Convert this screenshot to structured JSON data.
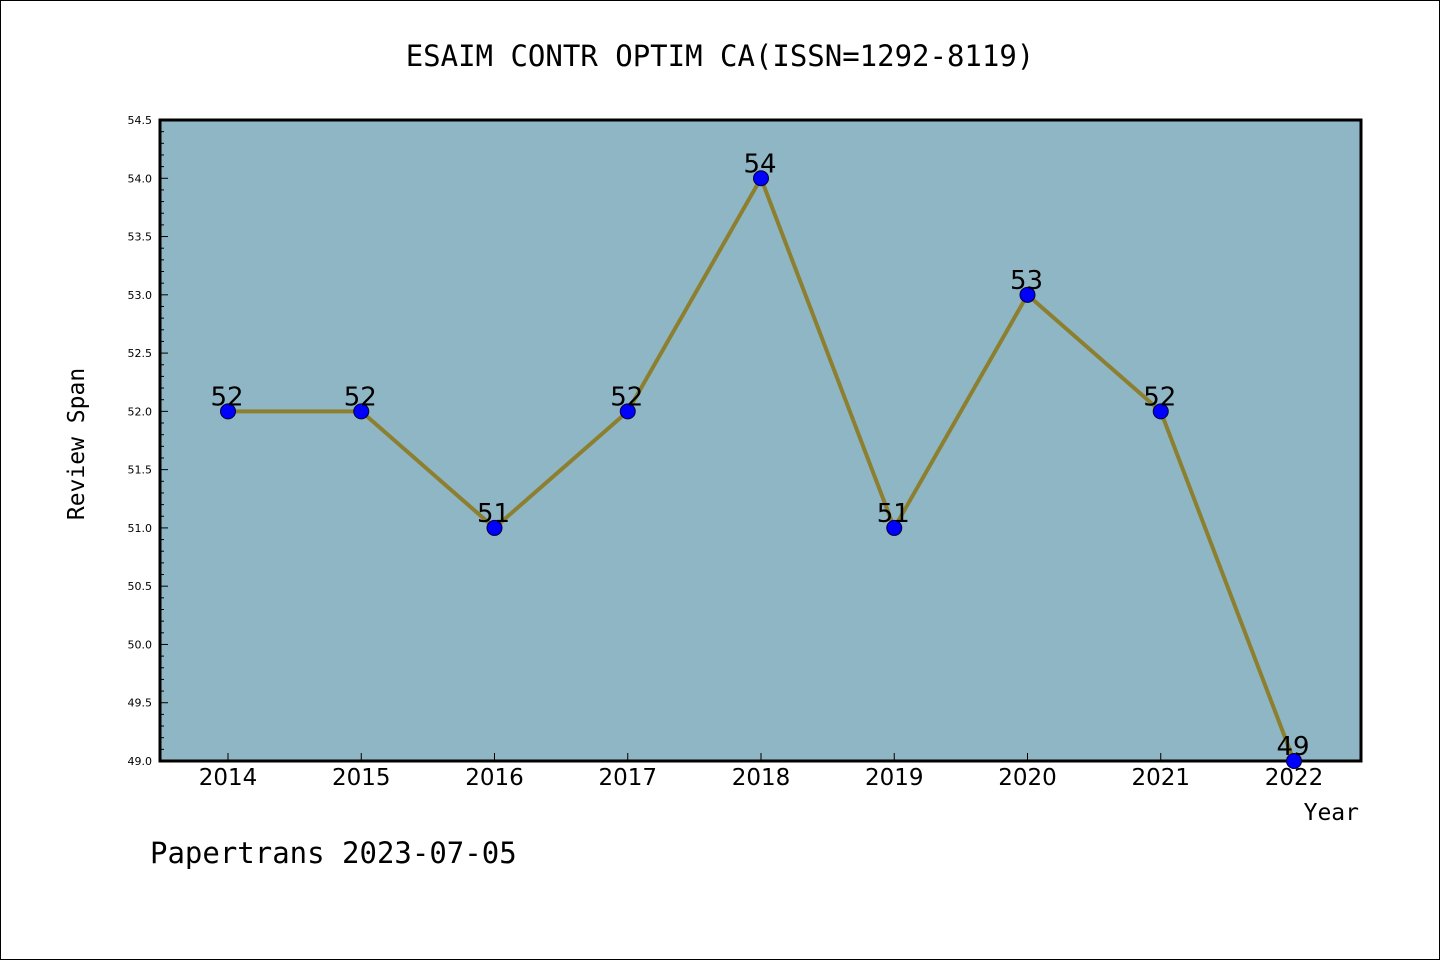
{
  "chart_data": {
    "type": "line",
    "title": "ESAIM CONTR OPTIM CA(ISSN=1292-8119)",
    "xlabel": "Year",
    "ylabel": "Review Span",
    "categories": [
      "2014",
      "2015",
      "2016",
      "2017",
      "2018",
      "2019",
      "2020",
      "2021",
      "2022"
    ],
    "series": [
      {
        "values": [
          52,
          52,
          51,
          52,
          54,
          51,
          53,
          52,
          49
        ]
      }
    ],
    "data_labels": [
      "52",
      "52",
      "51",
      "52",
      "54",
      "51",
      "53",
      "52",
      "49"
    ],
    "ylim": [
      49.0,
      54.5
    ],
    "y_ticks": [
      "49.0",
      "49.5",
      "50.0",
      "50.5",
      "51.0",
      "51.5",
      "52.0",
      "52.5",
      "53.0",
      "53.5",
      "54.0",
      "54.5"
    ],
    "grid": false,
    "footer": "Papertrans 2023-07-05",
    "colors": {
      "plot_background": "#8fb6c4",
      "line": "#8c8030",
      "marker": "#0000ff",
      "text": "#000000"
    }
  }
}
